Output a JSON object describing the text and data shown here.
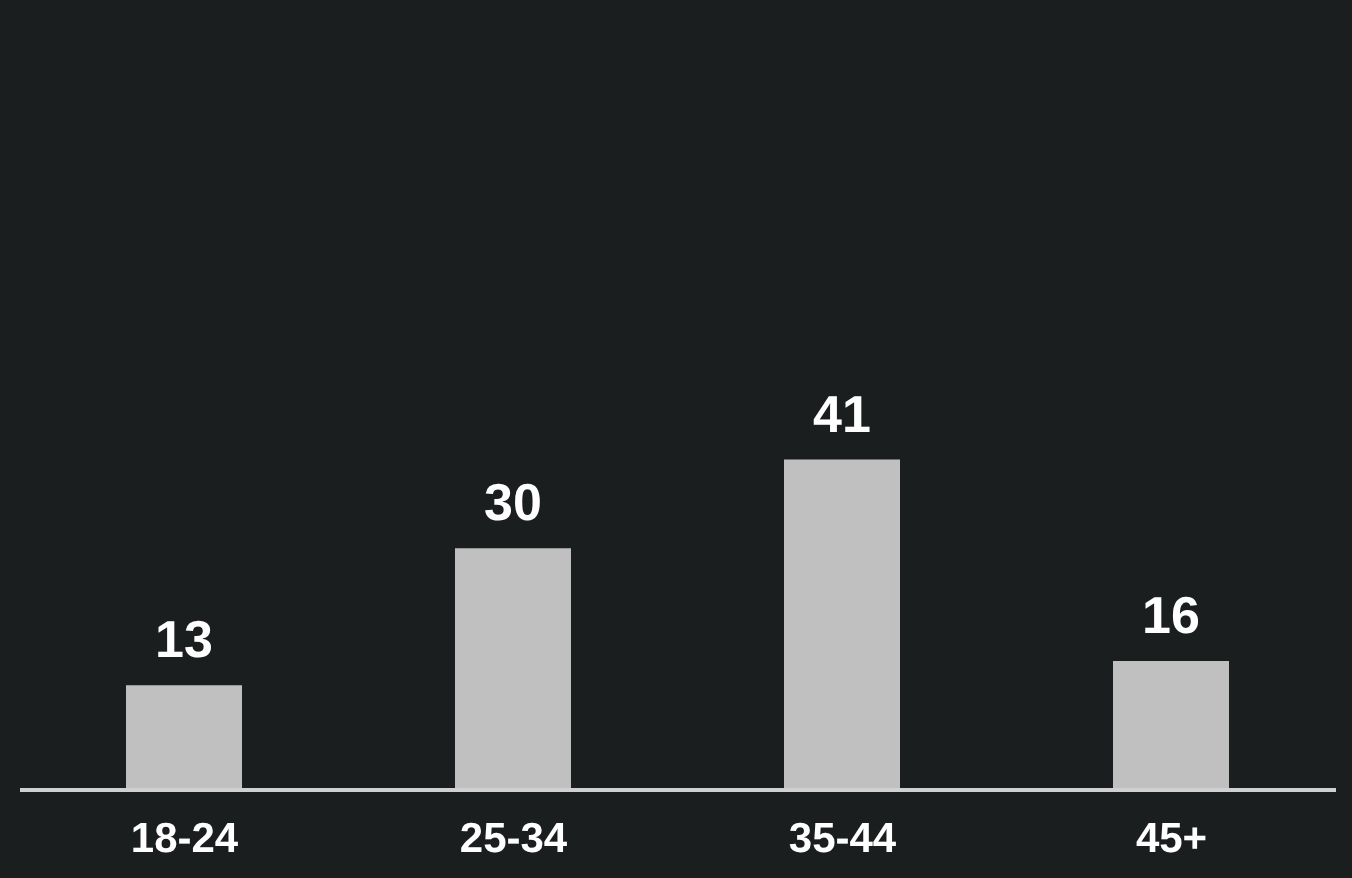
{
  "chart_data": {
    "type": "bar",
    "categories": [
      "18-24",
      "25-34",
      "35-44",
      "45+"
    ],
    "values": [
      13,
      30,
      41,
      16
    ],
    "color": "#c0c0c0",
    "data_labels": true
  }
}
